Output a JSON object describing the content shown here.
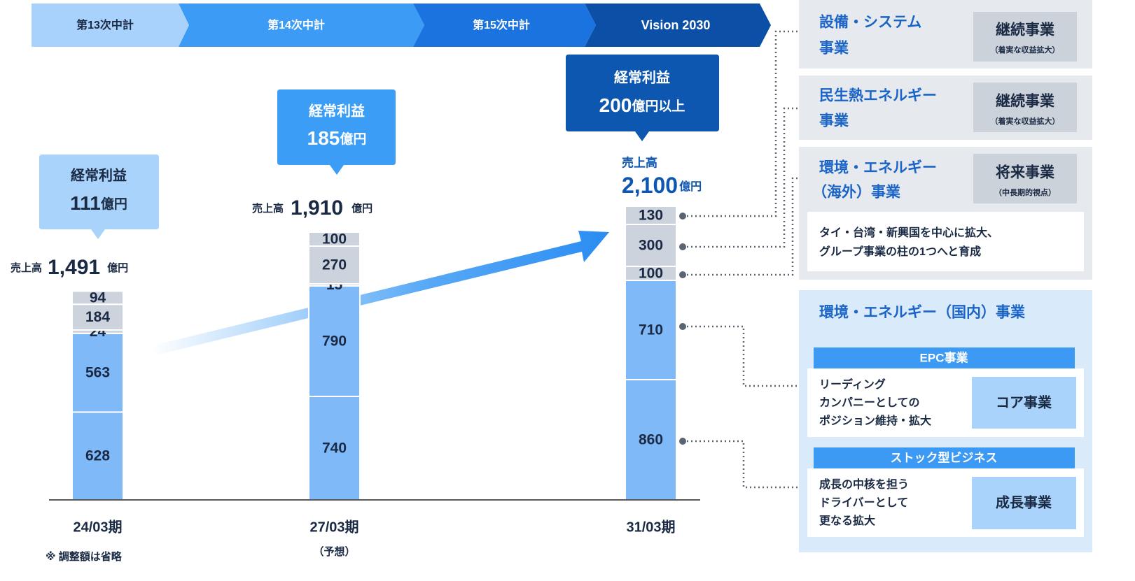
{
  "phases": [
    "第13次中計",
    "第14次中計",
    "第15次中計",
    "Vision 2030"
  ],
  "chart_data": {
    "type": "stacked_bar",
    "categories": [
      "24/03期",
      "27/03期",
      "31/03期"
    ],
    "category_notes": [
      null,
      "（予想）",
      null
    ],
    "series": [
      {
        "color": "#80b9f8",
        "values": [
          628,
          740,
          860
        ]
      },
      {
        "color": "#80b9f8",
        "values": [
          563,
          790,
          710
        ]
      },
      {
        "color": "#cdd3dc",
        "values": [
          24,
          15,
          100
        ]
      },
      {
        "color": "#cdd3dc",
        "values": [
          184,
          270,
          300
        ]
      },
      {
        "color": "#cdd3dc",
        "values": [
          94,
          100,
          130
        ]
      }
    ],
    "ylim": [
      0,
      3500
    ],
    "sales": [
      {
        "label": "売上高",
        "value": "1,491",
        "unit": "億円"
      },
      {
        "label": "売上高",
        "value": "1,910",
        "unit": "億円"
      },
      {
        "label": "売上高",
        "value": "2,100",
        "unit": "億円"
      }
    ],
    "profit": [
      {
        "label": "経常利益",
        "value": "111",
        "unit": "億円"
      },
      {
        "label": "経常利益",
        "value": "185",
        "unit": "億円"
      },
      {
        "label": "経常利益",
        "value": "200",
        "unit": "億円以上"
      }
    ],
    "footnote": "※ 調整額は省略"
  },
  "segments": [
    {
      "name": [
        "設備・システム",
        "事業"
      ],
      "tag": "継続事業",
      "tag_note": "（着実な収益拡大）"
    },
    {
      "name": [
        "民生熱エネルギー",
        "事業"
      ],
      "tag": "継続事業",
      "tag_note": "（着実な収益拡大）"
    },
    {
      "name": [
        "環境・エネルギー",
        "（海外）事業"
      ],
      "tag": "将来事業",
      "tag_note": "（中長期的視点）",
      "description": [
        "タイ・台湾・新興国を中心に拡大、",
        "グループ事業の柱の1つへと育成"
      ]
    }
  ],
  "domestic": {
    "title": "環境・エネルギー（国内）事業",
    "items": [
      {
        "header": "EPC事業",
        "description": [
          "リーディング",
          "カンパニーとしての",
          "ポジション維持・拡大"
        ],
        "tag": "コア事業"
      },
      {
        "header": "ストック型ビジネス",
        "description": [
          "成長の中核を担う",
          "ドライバーとして",
          "更なる拡大"
        ],
        "tag": "成長事業"
      }
    ]
  }
}
